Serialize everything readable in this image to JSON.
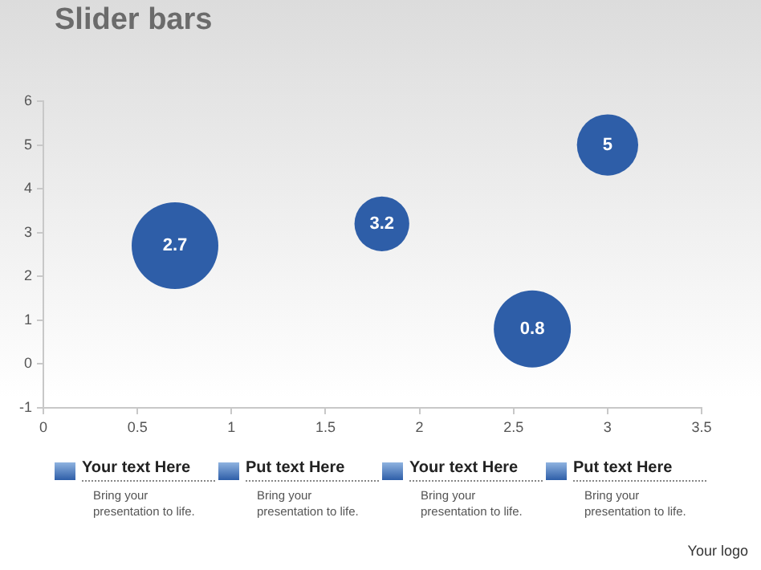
{
  "chart_data": {
    "type": "bubble",
    "title": "Slider bars",
    "x": [
      0.7,
      1.8,
      2.6,
      3.0
    ],
    "values": [
      2.7,
      3.2,
      0.8,
      5
    ],
    "sizes": [
      1,
      0.4,
      0.79,
      0.5
    ],
    "color": "#2e5ea8",
    "xlim": [
      0,
      3.5
    ],
    "xticks": [
      0,
      0.5,
      1,
      1.5,
      2,
      2.5,
      3,
      3.5
    ],
    "ylim": [
      -1,
      6
    ],
    "yticks": [
      -1,
      0,
      1,
      2,
      3,
      4,
      5,
      6
    ],
    "grid": false,
    "legend": false,
    "data_labels": true,
    "annotations": [
      "Your text Here",
      "Bring your presentation to life.",
      "Put text Here",
      "Bring your presentation to life.",
      "Your text Here",
      "Bring your presentation to life.",
      "Put text Here",
      "Bring your presentation to life.",
      "Your logo"
    ]
  }
}
